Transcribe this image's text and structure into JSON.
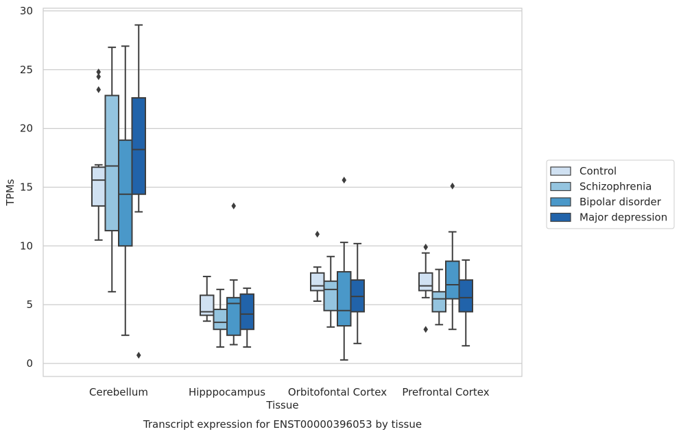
{
  "chart_data": {
    "type": "box",
    "caption": "Transcript expression for ENST00000396053 by tissue",
    "xlabel": "Tissue",
    "ylabel": "TPMs",
    "ylim": [
      -1.1,
      30.2
    ],
    "yticks": [
      0,
      5,
      10,
      15,
      20,
      25,
      30
    ],
    "grid": "horizontal",
    "legend_position": "right",
    "categories": [
      "Cerebellum",
      "Hipppocampus",
      "Orbitofontal Cortex",
      "Prefrontal Cortex"
    ],
    "series": [
      {
        "name": "Control",
        "color": "#d0e1f2",
        "boxes": [
          {
            "whislo": 10.5,
            "q1": 13.4,
            "med": 15.6,
            "q3": 16.7,
            "whishi": 16.9,
            "fliers": [
              23.3,
              24.4,
              24.8
            ]
          },
          {
            "whislo": 3.6,
            "q1": 4.1,
            "med": 4.4,
            "q3": 5.8,
            "whishi": 7.4,
            "fliers": []
          },
          {
            "whislo": 5.3,
            "q1": 6.2,
            "med": 6.6,
            "q3": 7.7,
            "whishi": 8.2,
            "fliers": [
              11.0
            ]
          },
          {
            "whislo": 5.6,
            "q1": 6.2,
            "med": 6.6,
            "q3": 7.7,
            "whishi": 9.4,
            "fliers": [
              2.9,
              9.9
            ]
          }
        ]
      },
      {
        "name": "Schizophrenia",
        "color": "#94c4df",
        "boxes": [
          {
            "whislo": 6.1,
            "q1": 11.3,
            "med": 16.8,
            "q3": 22.8,
            "whishi": 26.9,
            "fliers": []
          },
          {
            "whislo": 1.4,
            "q1": 2.9,
            "med": 3.5,
            "q3": 4.6,
            "whishi": 6.3,
            "fliers": []
          },
          {
            "whislo": 3.1,
            "q1": 4.5,
            "med": 6.3,
            "q3": 7.0,
            "whishi": 9.1,
            "fliers": []
          },
          {
            "whislo": 3.3,
            "q1": 4.4,
            "med": 5.5,
            "q3": 6.1,
            "whishi": 8.0,
            "fliers": []
          }
        ]
      },
      {
        "name": "Bipolar disorder",
        "color": "#4a98c9",
        "boxes": [
          {
            "whislo": 2.4,
            "q1": 10.0,
            "med": 14.4,
            "q3": 19.0,
            "whishi": 27.0,
            "fliers": []
          },
          {
            "whislo": 1.6,
            "q1": 2.4,
            "med": 5.1,
            "q3": 5.6,
            "whishi": 7.1,
            "fliers": [
              13.4
            ]
          },
          {
            "whislo": 0.3,
            "q1": 3.2,
            "med": 4.5,
            "q3": 7.8,
            "whishi": 10.3,
            "fliers": [
              15.6
            ]
          },
          {
            "whislo": 2.9,
            "q1": 5.5,
            "med": 6.7,
            "q3": 8.7,
            "whishi": 11.2,
            "fliers": [
              15.1
            ]
          }
        ]
      },
      {
        "name": "Major depression",
        "color": "#2163aa",
        "boxes": [
          {
            "whislo": 12.9,
            "q1": 14.4,
            "med": 18.2,
            "q3": 22.6,
            "whishi": 28.8,
            "fliers": [
              0.7
            ]
          },
          {
            "whislo": 1.4,
            "q1": 2.9,
            "med": 4.2,
            "q3": 5.9,
            "whishi": 6.4,
            "fliers": []
          },
          {
            "whislo": 1.7,
            "q1": 4.4,
            "med": 5.7,
            "q3": 7.1,
            "whishi": 10.2,
            "fliers": []
          },
          {
            "whislo": 1.5,
            "q1": 4.4,
            "med": 5.6,
            "q3": 7.1,
            "whishi": 8.8,
            "fliers": []
          }
        ]
      }
    ]
  }
}
